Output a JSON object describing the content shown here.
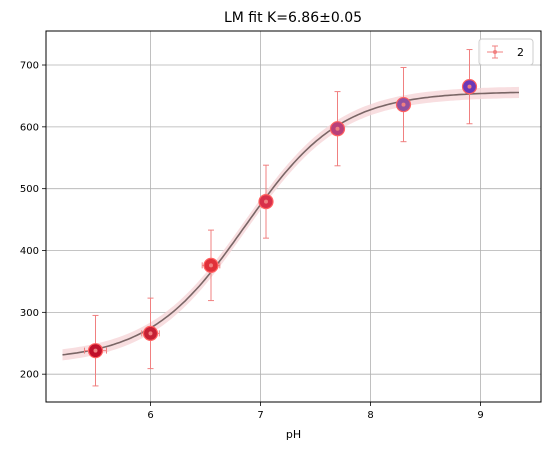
{
  "chart_data": {
    "type": "scatter",
    "title": "LM fit K=6.86±0.05",
    "xlabel": "pH",
    "ylabel": "",
    "xlim": [
      5.05,
      9.55
    ],
    "ylim": [
      155,
      755
    ],
    "xticks": [
      6,
      7,
      8,
      9
    ],
    "yticks": [
      200,
      300,
      400,
      500,
      600,
      700
    ],
    "grid": true,
    "legend_position": "top-right",
    "series": [
      {
        "name": "2",
        "x": [
          5.5,
          6.0,
          6.55,
          7.05,
          7.7,
          8.3,
          8.9
        ],
        "y": [
          238,
          266,
          376,
          479,
          597,
          636,
          665
        ],
        "yerr": [
          57,
          57,
          57,
          59,
          60,
          60,
          60
        ],
        "xerr": [
          0.1,
          0.08,
          0.08,
          0.05,
          0.05,
          0.05,
          0.05
        ],
        "point_colors": [
          "#c0102a",
          "#c52034",
          "#e0303a",
          "#d8304a",
          "#b8407a",
          "#9050a0",
          "#6a38b8"
        ]
      }
    ],
    "fit": {
      "model": "sigmoid",
      "K": 6.86,
      "K_err": 0.05,
      "bottom": 222,
      "top": 657,
      "x_range": [
        5.2,
        9.35
      ],
      "band_halfwidth": 9
    },
    "colors": {
      "errorbar": "#f08080",
      "fit_line": "#7a6666",
      "band": "#f6d6d8",
      "grid": "#b0b0b0",
      "point_edge": "#ff6060"
    }
  }
}
